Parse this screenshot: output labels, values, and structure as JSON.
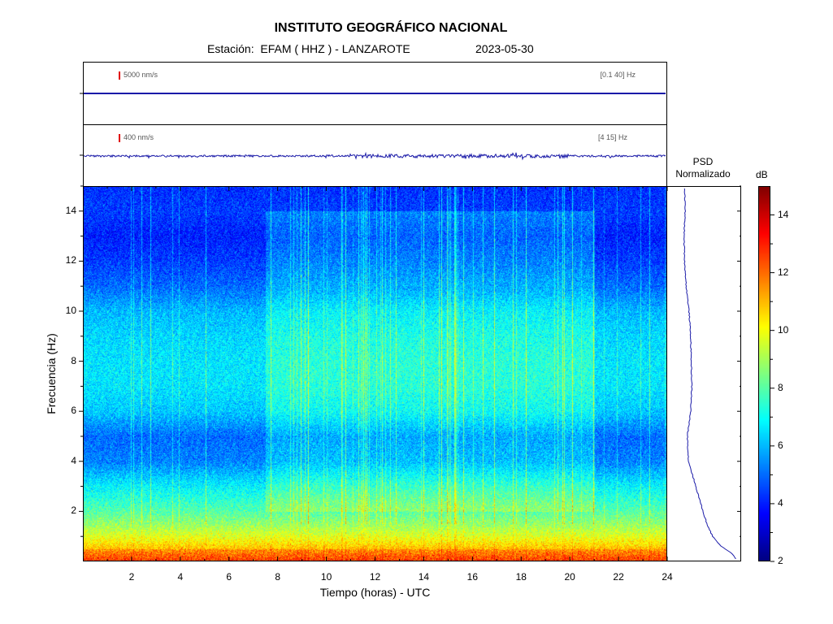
{
  "header": {
    "title": "INSTITUTO GEOGRÁFICO NACIONAL",
    "station": "Estación:  EFAM ( HHZ ) - LANZAROTE",
    "date": "2023-05-30"
  },
  "traces": [
    {
      "scale_label": "5000 nm/s",
      "band_label": "[0.1 40] Hz",
      "color": "#1a1aa8"
    },
    {
      "scale_label": "400 nm/s",
      "band_label": "[4 15] Hz",
      "color": "#1a1aa8"
    }
  ],
  "psd": {
    "title_line1": "PSD",
    "title_line2": "Normalizado"
  },
  "colorbar": {
    "title": "dB",
    "min": 2,
    "max": 15,
    "ticks": [
      "2",
      "4",
      "6",
      "8",
      "10",
      "12",
      "14"
    ]
  },
  "chart_data": {
    "type": "heatmap",
    "title": "INSTITUTO GEOGRÁFICO NACIONAL",
    "subtitle": "Estación:  EFAM ( HHZ ) - LANZAROTE",
    "xlabel": "Tiempo (horas) - UTC",
    "ylabel": "Frecuencia  (Hz)",
    "xlim": [
      0,
      24
    ],
    "ylim": [
      0,
      15
    ],
    "xticks": [
      2,
      4,
      6,
      8,
      10,
      12,
      14,
      16,
      18,
      20,
      22,
      24
    ],
    "yticks": [
      2,
      4,
      6,
      8,
      10,
      12,
      14
    ],
    "colorbar_label": "dB",
    "colorbar_range": [
      2,
      15
    ],
    "frequency_profile_db": [
      {
        "f": 0.1,
        "db": 12
      },
      {
        "f": 0.5,
        "db": 11
      },
      {
        "f": 1.0,
        "db": 9.8
      },
      {
        "f": 1.5,
        "db": 8.8
      },
      {
        "f": 2.0,
        "db": 8.0
      },
      {
        "f": 3.0,
        "db": 6.8
      },
      {
        "f": 4.0,
        "db": 5.3
      },
      {
        "f": 5.0,
        "db": 5.0
      },
      {
        "f": 6.0,
        "db": 6.2
      },
      {
        "f": 7.0,
        "db": 6.6
      },
      {
        "f": 8.0,
        "db": 6.6
      },
      {
        "f": 9.0,
        "db": 6.4
      },
      {
        "f": 10.0,
        "db": 6.0
      },
      {
        "f": 11.0,
        "db": 5.0
      },
      {
        "f": 12.0,
        "db": 4.4
      },
      {
        "f": 13.0,
        "db": 4.0
      },
      {
        "f": 14.0,
        "db": 4.4
      },
      {
        "f": 15.0,
        "db": 4.2
      }
    ],
    "psd_normalized": [
      {
        "f": 0.1,
        "v": 0.97
      },
      {
        "f": 0.3,
        "v": 0.9
      },
      {
        "f": 0.6,
        "v": 0.7
      },
      {
        "f": 1.0,
        "v": 0.55
      },
      {
        "f": 1.5,
        "v": 0.45
      },
      {
        "f": 2.0,
        "v": 0.38
      },
      {
        "f": 3.0,
        "v": 0.25
      },
      {
        "f": 4.0,
        "v": 0.12
      },
      {
        "f": 5.0,
        "v": 0.1
      },
      {
        "f": 6.0,
        "v": 0.16
      },
      {
        "f": 7.0,
        "v": 0.18
      },
      {
        "f": 8.0,
        "v": 0.17
      },
      {
        "f": 9.0,
        "v": 0.16
      },
      {
        "f": 10.0,
        "v": 0.13
      },
      {
        "f": 11.0,
        "v": 0.08
      },
      {
        "f": 12.0,
        "v": 0.05
      },
      {
        "f": 13.0,
        "v": 0.04
      },
      {
        "f": 14.0,
        "v": 0.06
      },
      {
        "f": 15.0,
        "v": 0.05
      }
    ]
  }
}
